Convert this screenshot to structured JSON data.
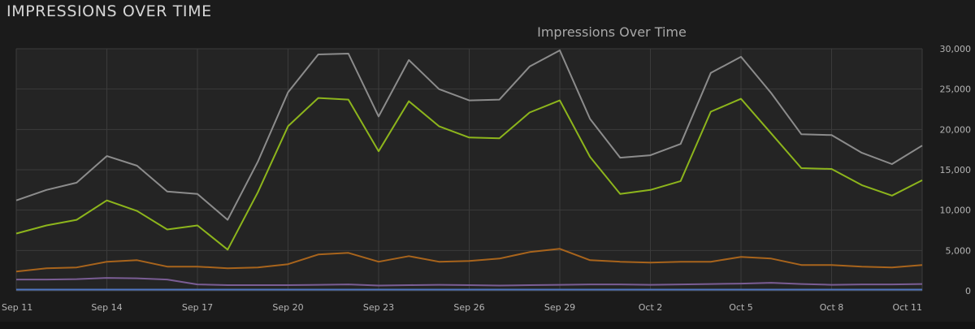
{
  "panel": {
    "title": "IMPRESSIONS OVER TIME"
  },
  "colors": {
    "background": "#1b1b1b",
    "plot_background": "#242424",
    "grid": "#3b3b3b",
    "text": "#b4b4b4"
  },
  "chart_data": {
    "type": "line",
    "title": "Impressions Over Time",
    "xlabel": "",
    "ylabel": "",
    "ylim": [
      0,
      30000
    ],
    "y_ticks": [
      0,
      5000,
      10000,
      15000,
      20000,
      25000,
      30000
    ],
    "y_tick_labels": [
      "0",
      "5,000",
      "10,000",
      "15,000",
      "20,000",
      "25,000",
      "30,000"
    ],
    "x_tick_labels": [
      "Sep 11",
      "Sep 14",
      "Sep 17",
      "Sep 20",
      "Sep 23",
      "Sep 26",
      "Sep 29",
      "Oct 2",
      "Oct 5",
      "Oct 8",
      "Oct 11"
    ],
    "x_tick_every": 3,
    "grid": true,
    "x": [
      "Sep 11",
      "Sep 12",
      "Sep 13",
      "Sep 14",
      "Sep 15",
      "Sep 16",
      "Sep 17",
      "Sep 18",
      "Sep 19",
      "Sep 20",
      "Sep 21",
      "Sep 22",
      "Sep 23",
      "Sep 24",
      "Sep 25",
      "Sep 26",
      "Sep 27",
      "Sep 28",
      "Sep 29",
      "Sep 30",
      "Oct 1",
      "Oct 2",
      "Oct 3",
      "Oct 4",
      "Oct 5",
      "Oct 6",
      "Oct 7",
      "Oct 8",
      "Oct 9",
      "Oct 10",
      "Oct 11"
    ],
    "series": [
      {
        "color": "#8c8c8c",
        "values": [
          11200,
          12500,
          13400,
          16700,
          15500,
          12300,
          12000,
          8800,
          16000,
          24600,
          29300,
          29400,
          21600,
          28600,
          25000,
          23600,
          23700,
          27800,
          29800,
          21300,
          16500,
          16800,
          18200,
          27000,
          29000,
          24500,
          19400,
          19300,
          17100,
          15700,
          18000
        ]
      },
      {
        "color": "#8db51c",
        "values": [
          7100,
          8100,
          8800,
          11200,
          9900,
          7600,
          8100,
          5100,
          12200,
          20400,
          23900,
          23700,
          17300,
          23500,
          20400,
          19000,
          18900,
          22100,
          23600,
          16600,
          12000,
          12500,
          13600,
          22200,
          23800,
          19500,
          15200,
          15100,
          13100,
          11800,
          13700
        ]
      },
      {
        "color": "#a8641c",
        "values": [
          2400,
          2800,
          2900,
          3600,
          3800,
          3000,
          3000,
          2800,
          2900,
          3300,
          4500,
          4700,
          3600,
          4300,
          3600,
          3700,
          4000,
          4800,
          5200,
          3800,
          3600,
          3500,
          3600,
          3600,
          4200,
          4000,
          3200,
          3200,
          3000,
          2900,
          3200
        ]
      },
      {
        "color": "#7a5d94",
        "values": [
          1400,
          1400,
          1450,
          1600,
          1550,
          1400,
          800,
          700,
          700,
          700,
          750,
          800,
          650,
          700,
          750,
          700,
          650,
          700,
          750,
          800,
          800,
          750,
          800,
          850,
          900,
          1000,
          850,
          750,
          800,
          800,
          850
        ]
      },
      {
        "color": "#4f76c2",
        "values": [
          150,
          150,
          150,
          150,
          150,
          150,
          150,
          150,
          150,
          150,
          150,
          150,
          150,
          150,
          150,
          150,
          150,
          150,
          150,
          150,
          150,
          150,
          150,
          150,
          150,
          150,
          150,
          150,
          150,
          150,
          150
        ]
      }
    ]
  }
}
